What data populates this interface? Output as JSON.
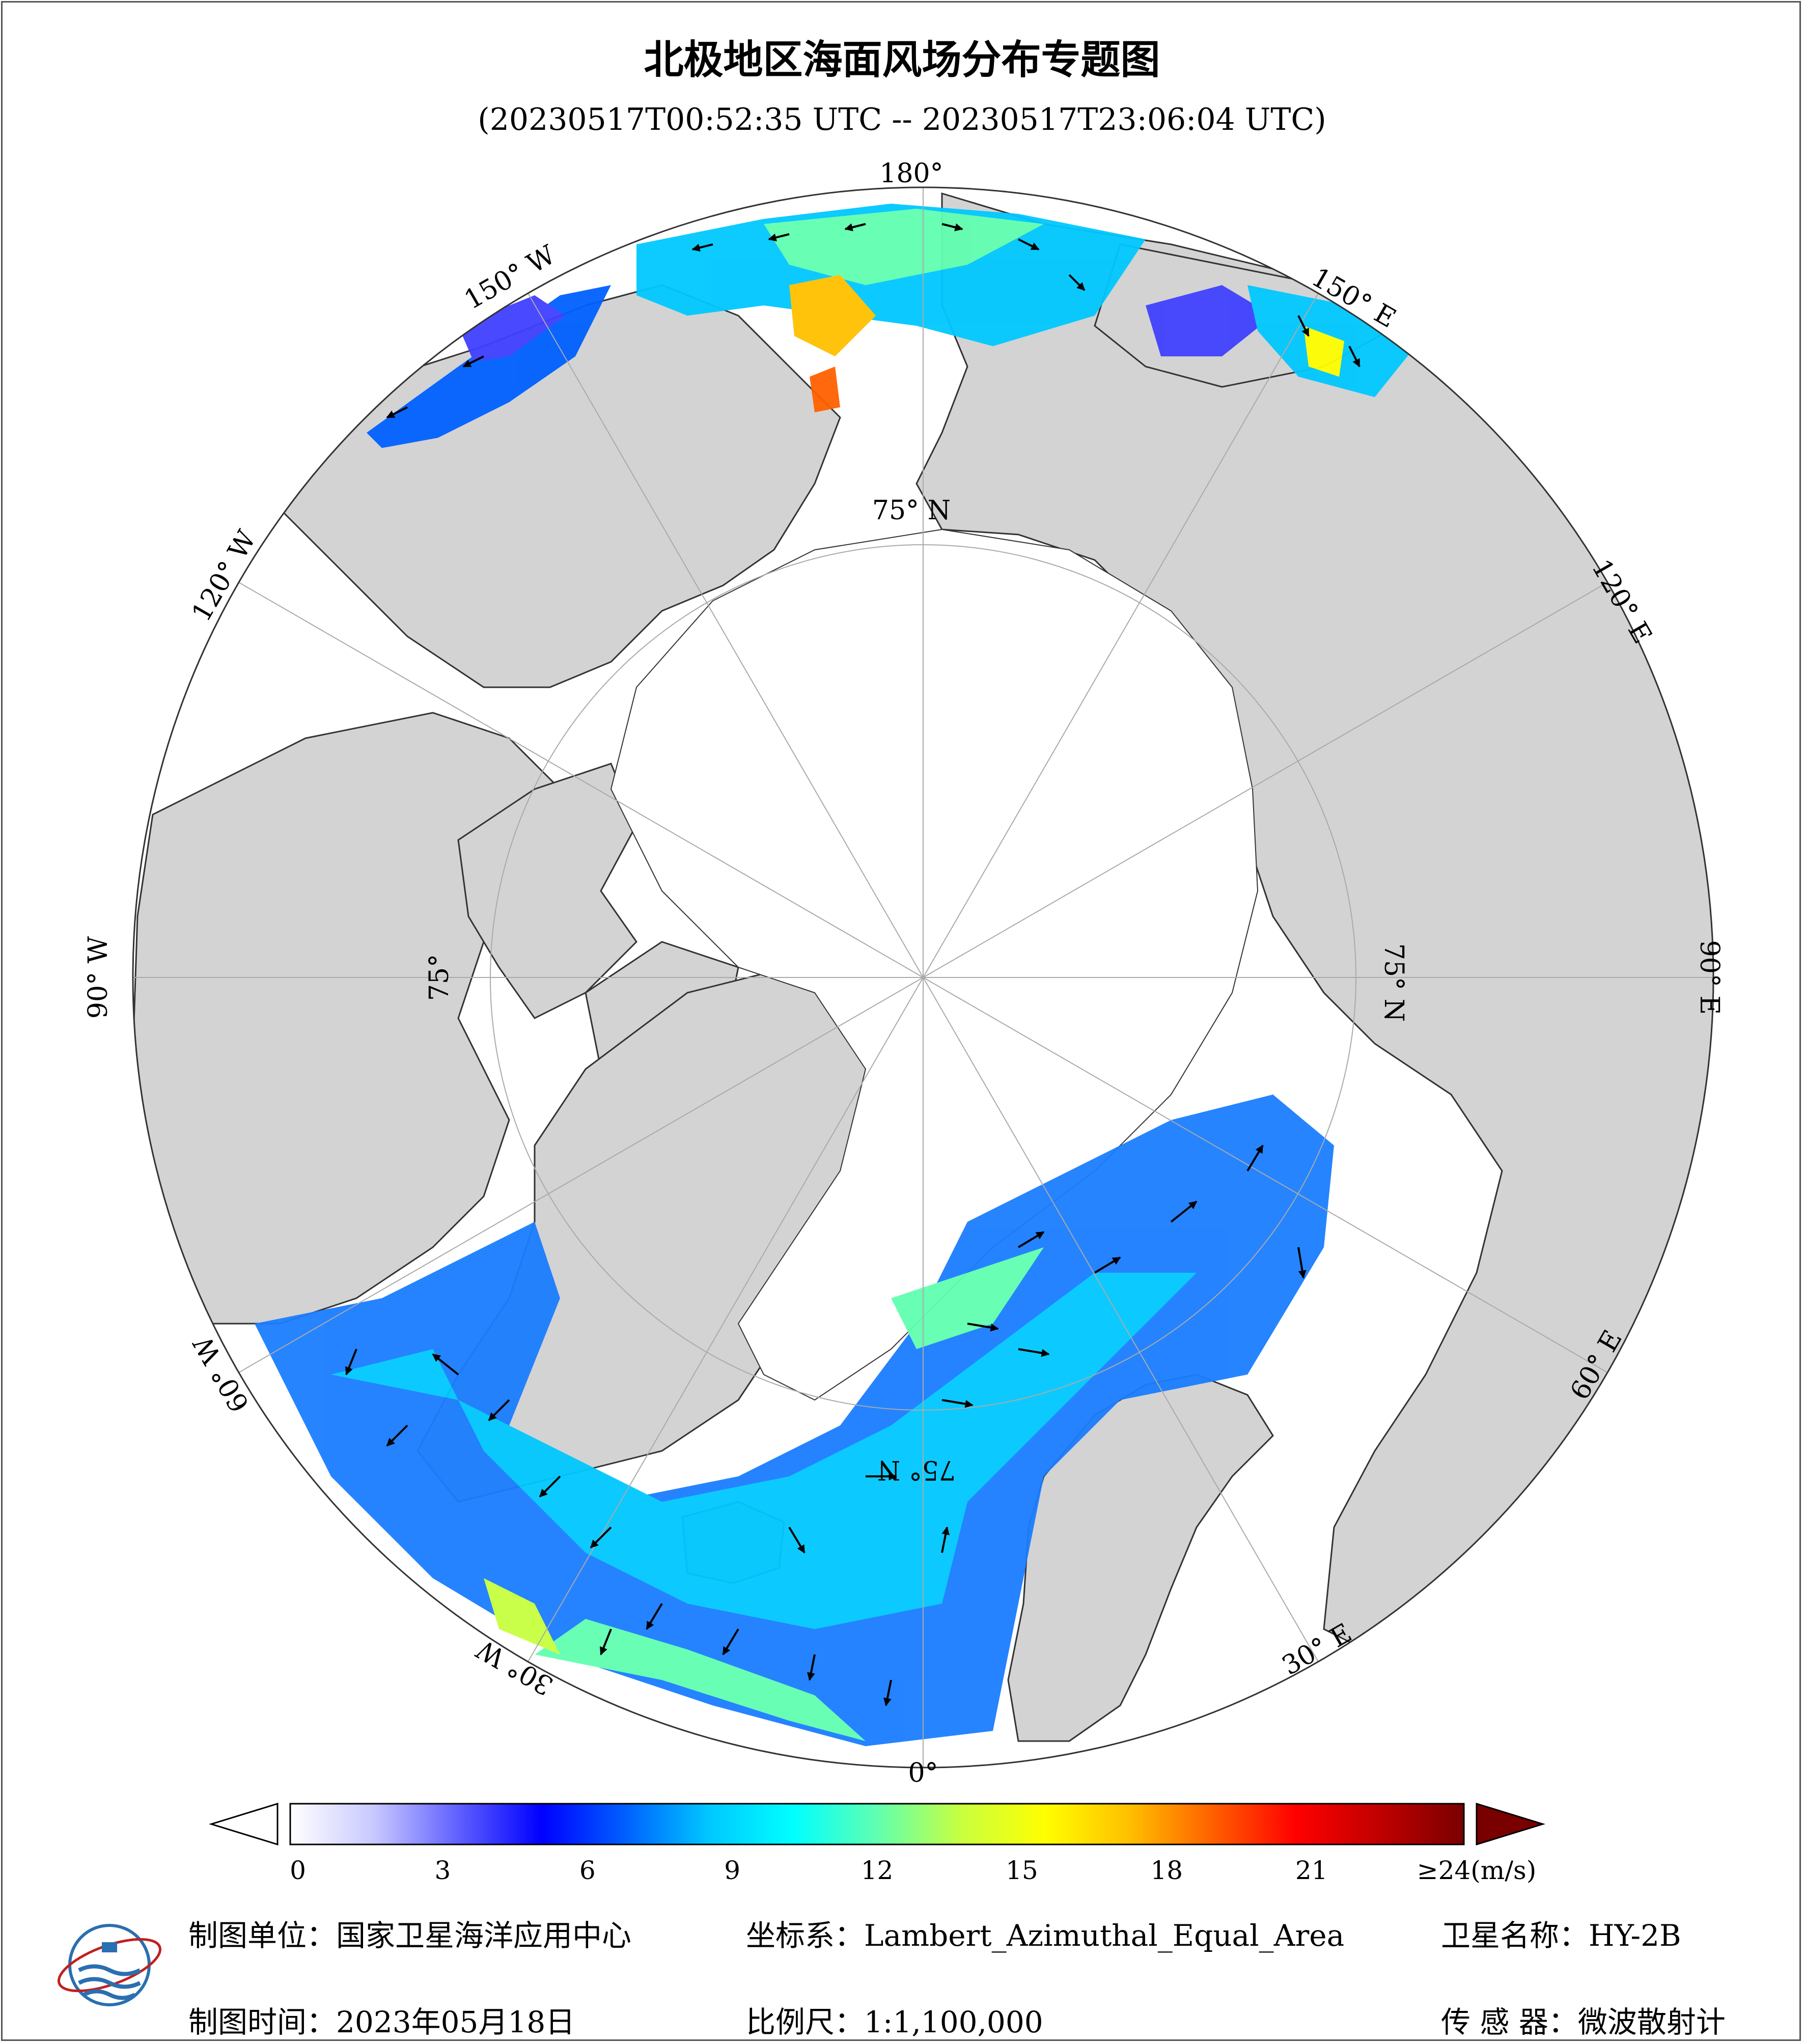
{
  "title": "北极地区海面风场分布专题图",
  "subtitle": "(20230517T00:52:35 UTC -- 20230517T23:06:04 UTC)",
  "map": {
    "projection": "Lambert_Azimuthal_Equal_Area",
    "center": "North Pole",
    "land_color": "#d3d3d3",
    "ice_color": "#ffffff",
    "longitude_labels": {
      "l180": "180°",
      "l150e": "150° E",
      "l120e": "120° E",
      "l90e": "90° E",
      "l60e": "60° E",
      "l30e": "30° E",
      "l0": "0°",
      "l30w": "30° W",
      "l60w": "60° W",
      "l90w": "90° W",
      "l120w": "120° W",
      "l150w": "150° W"
    },
    "latitude_labels": {
      "top": "75° N",
      "right": "75° N",
      "left": "75°",
      "bottom": "75° N"
    }
  },
  "colorbar": {
    "ticks": [
      "0",
      "3",
      "6",
      "9",
      "12",
      "15",
      "18",
      "21",
      "≥24(m/s)"
    ],
    "range": [
      0,
      24
    ],
    "unit": "m/s",
    "under_color": "#ffffff",
    "over_color": "#7a0000",
    "stops": [
      "#ffffff",
      "#c8c8ff",
      "#6060ff",
      "#0000ff",
      "#0060ff",
      "#00c8ff",
      "#00ffff",
      "#60ffb0",
      "#c8ff40",
      "#ffff00",
      "#ffc000",
      "#ff6000",
      "#ff0000",
      "#c00000",
      "#7a0000"
    ]
  },
  "footer": {
    "unit_label": "制图单位：",
    "unit_value": "国家卫星海洋应用中心",
    "crs_label": "坐标系：",
    "crs_value": "Lambert_Azimuthal_Equal_Area",
    "satellite_label": "卫星名称：",
    "satellite_value": "HY-2B",
    "date_label": "制图时间：",
    "date_value": "2023年05月18日",
    "scale_label": "比例尺：",
    "scale_value": "1:1,100,000",
    "sensor_label": "传 感 器：",
    "sensor_value": "微波散射计"
  }
}
